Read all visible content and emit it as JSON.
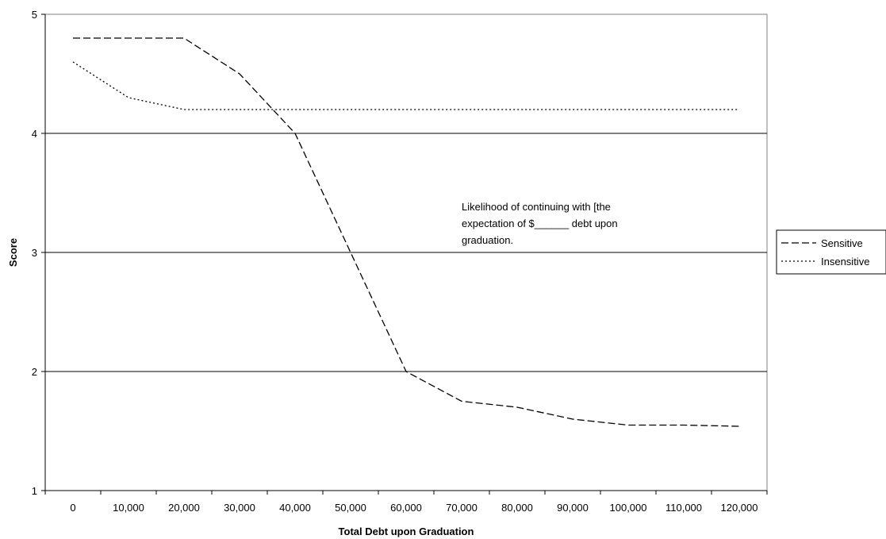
{
  "chart_data": {
    "type": "line",
    "title": "",
    "xlabel": "Total Debt upon Graduation",
    "ylabel": "Score",
    "categories": [
      "0",
      "10,000",
      "20,000",
      "30,000",
      "40,000",
      "50,000",
      "60,000",
      "70,000",
      "80,000",
      "90,000",
      "100,000",
      "110,000",
      "120,000"
    ],
    "y_ticks": [
      "1",
      "2",
      "3",
      "4",
      "5"
    ],
    "ylim": [
      1,
      5
    ],
    "grid": "horizontal",
    "legend_position": "right",
    "series": [
      {
        "name": "Sensitive",
        "style": "dashed",
        "color": "#000000",
        "values": [
          4.8,
          4.8,
          4.8,
          4.5,
          4.0,
          3.0,
          2.0,
          1.75,
          1.7,
          1.6,
          1.55,
          1.55,
          1.54
        ]
      },
      {
        "name": "Insensitive",
        "style": "dotted",
        "color": "#000000",
        "values": [
          4.6,
          4.3,
          4.2,
          4.2,
          4.2,
          4.2,
          4.2,
          4.2,
          4.2,
          4.2,
          4.2,
          4.2,
          4.2
        ]
      }
    ],
    "annotation": {
      "lines": [
        "Likelihood of continuing with [the",
        "expectation of $______  debt upon",
        "graduation."
      ]
    }
  }
}
